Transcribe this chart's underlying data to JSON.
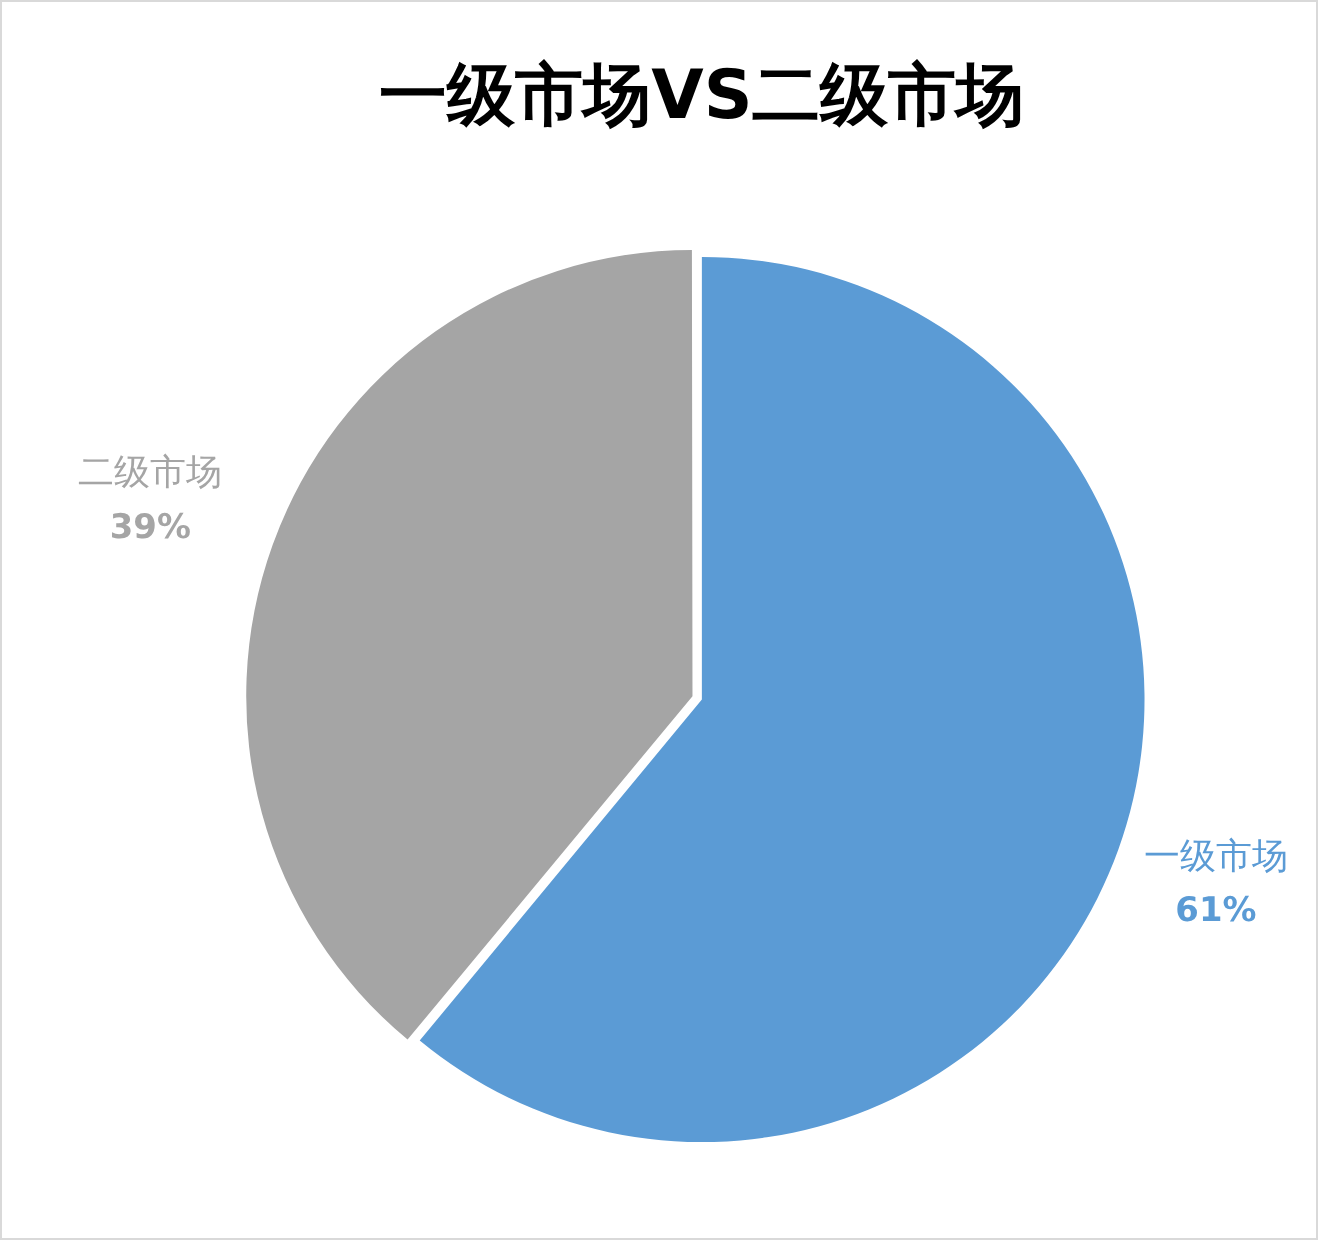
{
  "chart_data": {
    "type": "pie",
    "title": "一级市场VS二级市场",
    "categories": [
      "一级市场",
      "二级市场"
    ],
    "values": [
      61,
      39
    ],
    "colors": [
      "#5b9bd5",
      "#a5a5a5"
    ],
    "value_labels": [
      "61%",
      "39%"
    ],
    "legend": false
  }
}
